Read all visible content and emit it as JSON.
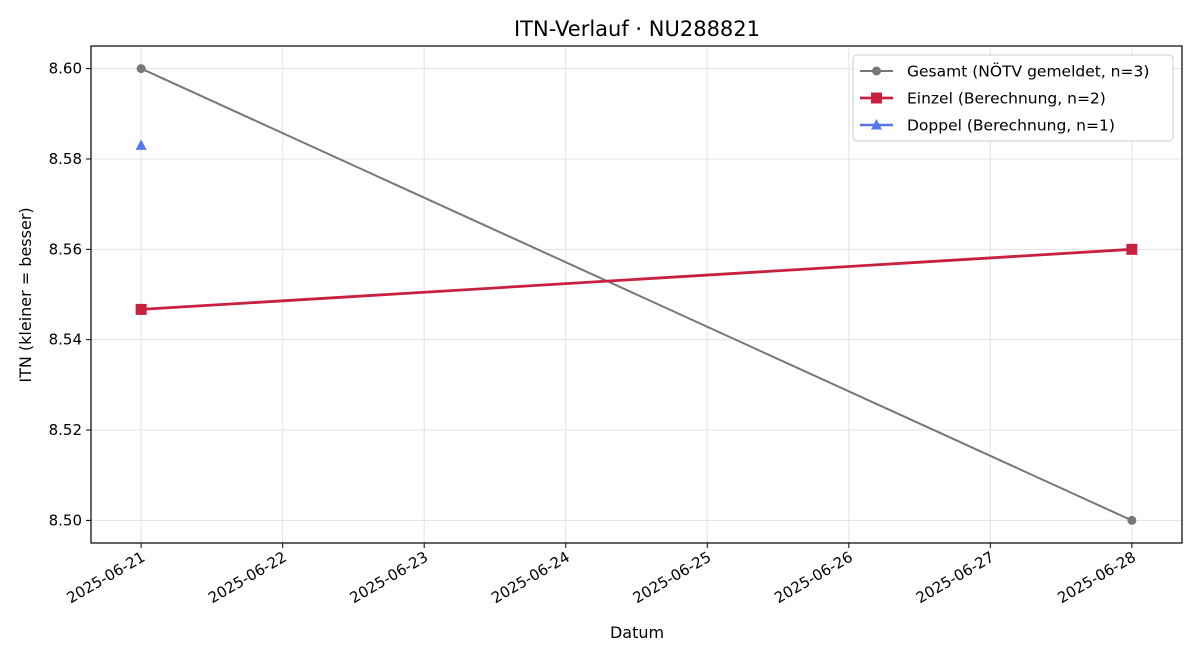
{
  "chart_data": {
    "type": "line",
    "title": "ITN-Verlauf · NU288821",
    "xlabel": "Datum",
    "ylabel": "ITN  (kleiner = besser)",
    "x_type": "date",
    "x_ticks": [
      "2025-06-21",
      "2025-06-22",
      "2025-06-23",
      "2025-06-24",
      "2025-06-25",
      "2025-06-26",
      "2025-06-27",
      "2025-06-28"
    ],
    "xlim": [
      "2025-06-20T15:30",
      "2025-06-28T08:30"
    ],
    "y_ticks": [
      "8.50",
      "8.52",
      "8.54",
      "8.56",
      "8.58",
      "8.60"
    ],
    "ylim": [
      8.495,
      8.605
    ],
    "grid": true,
    "legend_position": "top-right",
    "series": [
      {
        "name": "Gesamt (NÖTV gemeldet, n=3)",
        "color": "#777777",
        "marker": "circle",
        "points": [
          {
            "x": "2025-06-21",
            "y": 8.6
          },
          {
            "x": "2025-06-28",
            "y": 8.5
          }
        ]
      },
      {
        "name": "Einzel (Berechnung, n=2)",
        "color": "#c8203f",
        "marker": "square",
        "points": [
          {
            "x": "2025-06-21",
            "y": 8.5467
          },
          {
            "x": "2025-06-28",
            "y": 8.56
          }
        ]
      },
      {
        "name": "Doppel (Berechnung, n=1)",
        "color": "#5576f0",
        "marker": "triangle",
        "points": [
          {
            "x": "2025-06-21",
            "y": 8.583
          }
        ]
      }
    ]
  }
}
